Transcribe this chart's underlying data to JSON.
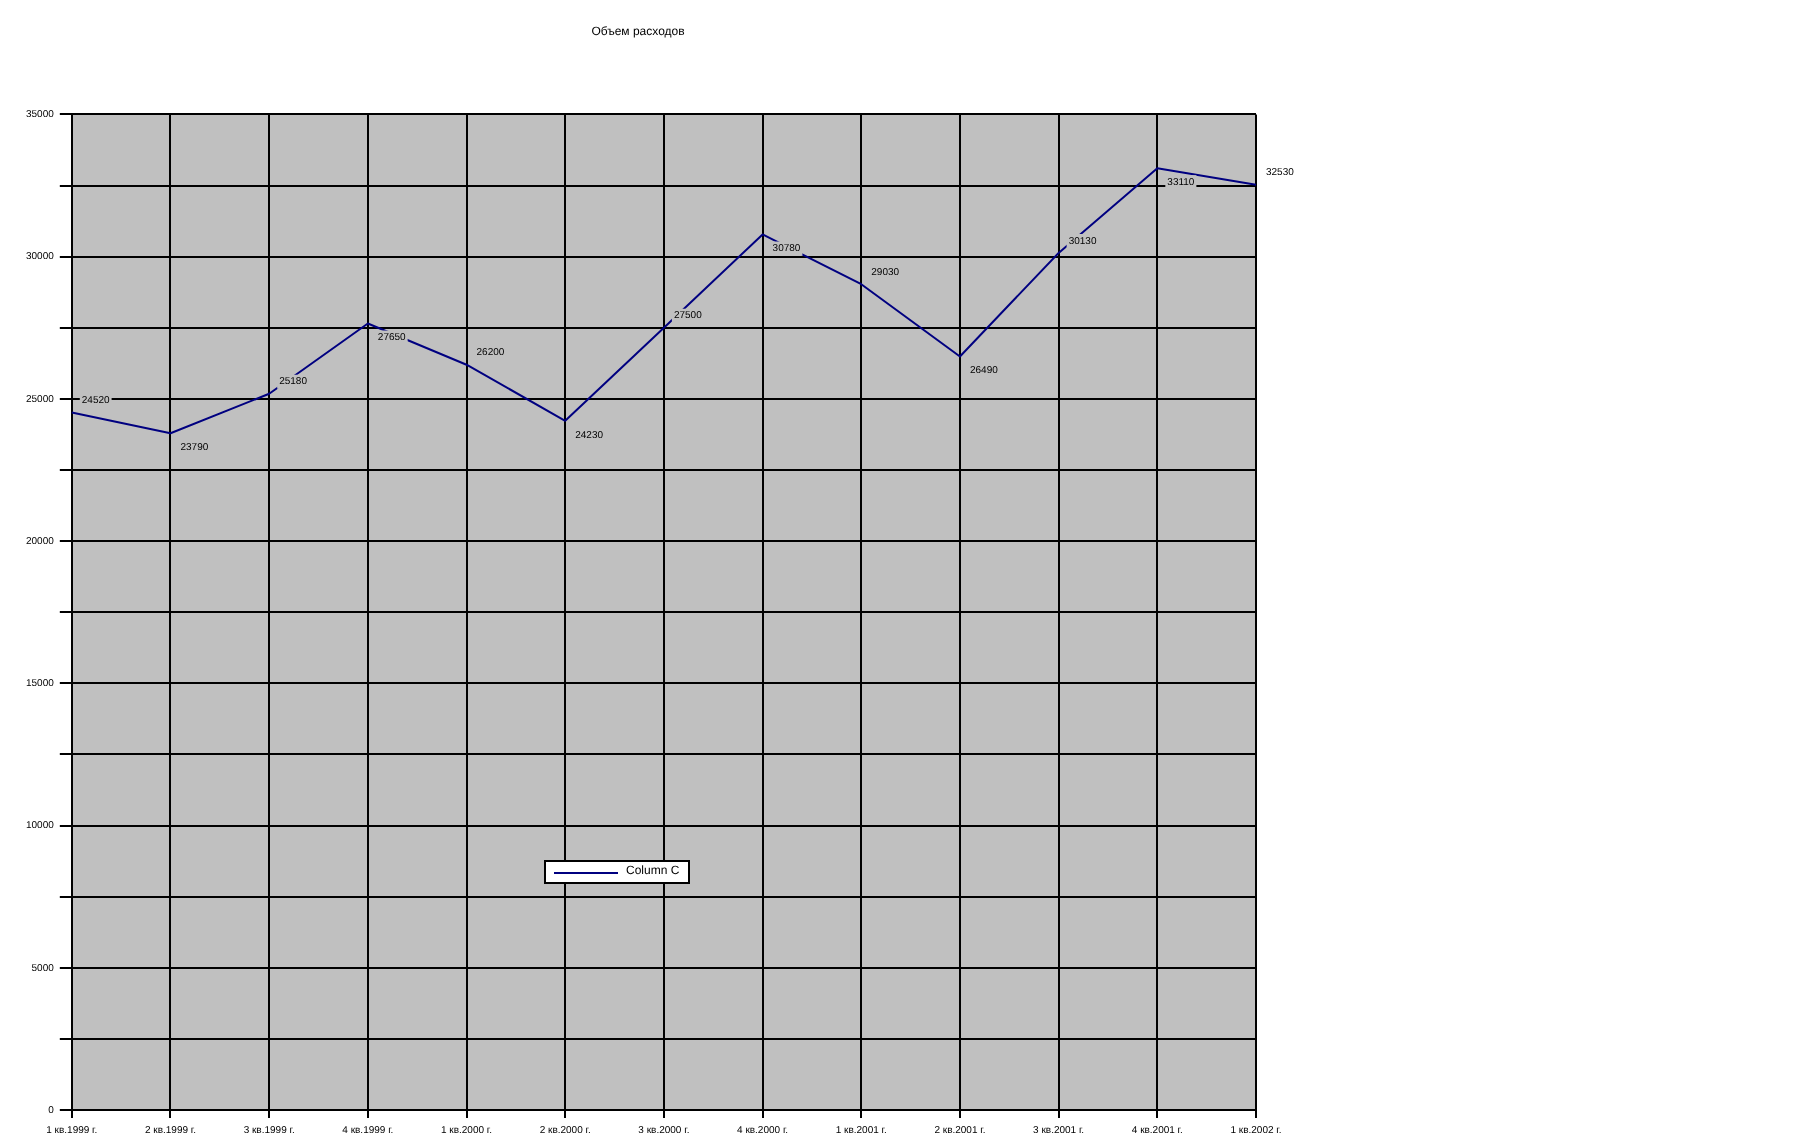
{
  "chart_data": {
    "type": "line",
    "title": "Объем расходов",
    "categories": [
      "1 кв.1999 г.",
      "2 кв.1999 г.",
      "3 кв.1999 г.",
      "4 кв.1999 г.",
      "1 кв.2000 г.",
      "2 кв.2000 г.",
      "3 кв.2000 г.",
      "4 кв.2000 г.",
      "1 кв.2001 г.",
      "2 кв.2001 г.",
      "3 кв.2001 г.",
      "4 кв.2001 г.",
      "1 кв.2002 г."
    ],
    "series": [
      {
        "name": "Column C",
        "color": "#000080",
        "values": [
          24520,
          23790,
          25180,
          27650,
          26200,
          24230,
          27500,
          30780,
          29030,
          26490,
          30130,
          33110,
          32530
        ]
      }
    ],
    "ylim": [
      0,
      35000
    ],
    "yticks": [
      0,
      {
        "value": 2500,
        "label": null
      },
      5000,
      {
        "value": 7500,
        "label": null
      },
      10000,
      {
        "value": 12500,
        "label": null
      },
      15000,
      {
        "value": 17500,
        "label": null
      },
      20000,
      {
        "value": 22500,
        "label": null
      },
      25000,
      {
        "value": 27500,
        "label": null
      },
      30000,
      {
        "value": 32500,
        "label": null
      },
      35000
    ],
    "grid": true,
    "legend": "bottom",
    "marker": "none",
    "line_style": "solid",
    "data_labels": true
  }
}
